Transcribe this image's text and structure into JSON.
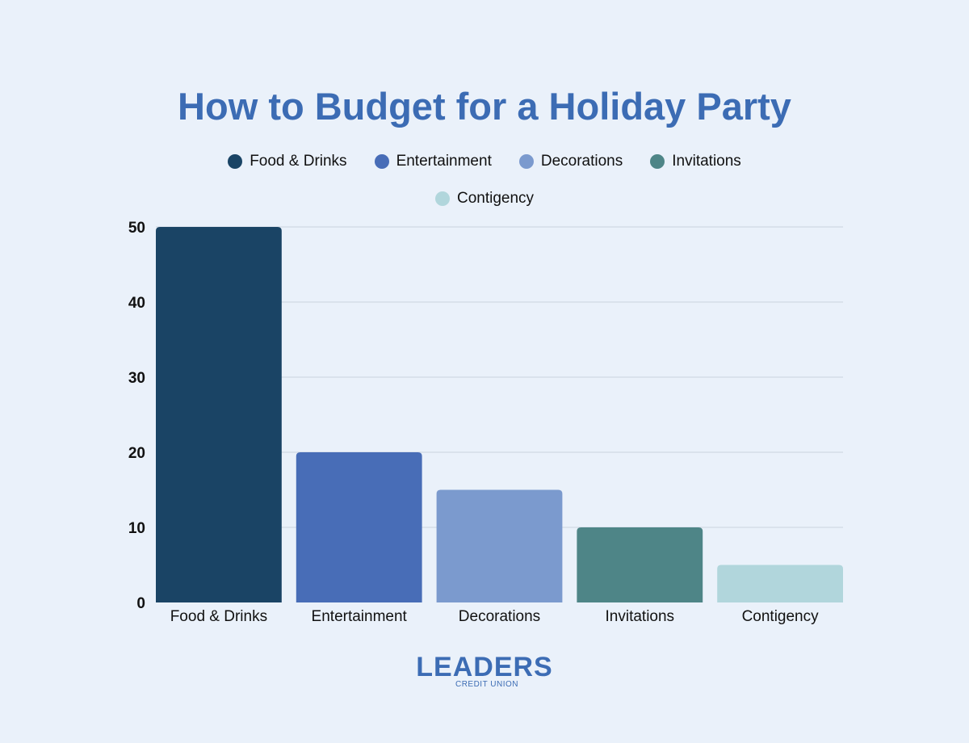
{
  "chart_data": {
    "type": "bar",
    "title": "How to Budget for a Holiday Party",
    "xlabel": "",
    "ylabel": "",
    "categories": [
      "Food & Drinks",
      "Entertainment",
      "Decorations",
      "Invitations",
      "Contigency"
    ],
    "values": [
      50,
      20,
      15,
      10,
      5
    ],
    "colors": [
      "#1a4465",
      "#486db7",
      "#7b9ace",
      "#4e8587",
      "#b1d6dc"
    ],
    "ylim": [
      0,
      50
    ],
    "yticks": [
      0,
      10,
      20,
      30,
      40,
      50
    ],
    "grid": true,
    "legend_position": "top",
    "legend": [
      "Food & Drinks",
      "Entertainment",
      "Decorations",
      "Invitations",
      "Contigency"
    ]
  },
  "logo": {
    "name": "LEADERS",
    "subtitle": "CREDIT UNION"
  }
}
